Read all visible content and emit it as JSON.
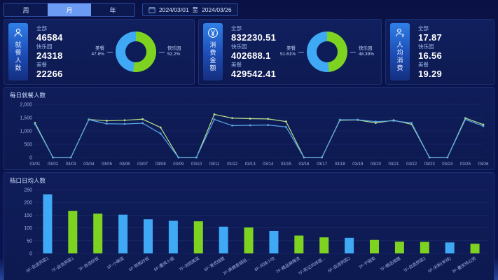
{
  "theme": {
    "bg": "#0a1245",
    "panel": "#0e1c58",
    "accent_blue": "#3fa9f5",
    "accent_green": "#7ed321",
    "line_green": "#b9e08c",
    "line_blue": "#5aa7e8",
    "grid": "#1c3070",
    "tick_text": "#9fb4e6"
  },
  "header": {
    "tabs": [
      {
        "label": "周",
        "active": false
      },
      {
        "label": "月",
        "active": true
      },
      {
        "label": "年",
        "active": false
      }
    ],
    "date_range": {
      "start": "2024/03/01",
      "separator": "至",
      "end": "2024/03/26"
    }
  },
  "kpi_cards": [
    {
      "title": "就餐人数",
      "icon": "person-icon",
      "metrics": [
        {
          "label": "全部",
          "value": "46584"
        },
        {
          "label": "快乐园",
          "value": "24318"
        },
        {
          "label": "美餐",
          "value": "22266"
        }
      ],
      "donut": {
        "left_label": "美餐",
        "left_pct": "47.8%",
        "left_value": 47.8,
        "right_label": "快乐园",
        "right_pct": "52.2%",
        "right_value": 52.2
      }
    },
    {
      "title": "消费金额",
      "icon": "yuan-icon",
      "metrics": [
        {
          "label": "全部",
          "value": "832230.51"
        },
        {
          "label": "快乐园",
          "value": "402688.1"
        },
        {
          "label": "美餐",
          "value": "429542.41"
        }
      ],
      "donut": {
        "left_label": "美餐",
        "left_pct": "51.61%",
        "left_value": 51.61,
        "right_label": "快乐园",
        "right_pct": "48.39%",
        "right_value": 48.39
      }
    },
    {
      "title": "人均消费",
      "icon": "person-yuan-icon",
      "metrics": [
        {
          "label": "全部",
          "value": "17.87"
        },
        {
          "label": "快乐园",
          "value": "16.56"
        },
        {
          "label": "美餐",
          "value": "19.29"
        }
      ]
    }
  ],
  "chart_data": [
    {
      "type": "line",
      "title": "每日就餐人数",
      "x": [
        "03/01",
        "03/02",
        "03/03",
        "03/04",
        "03/05",
        "03/06",
        "03/07",
        "03/08",
        "03/09",
        "03/10",
        "03/11",
        "03/12",
        "03/13",
        "03/14",
        "03/15",
        "03/16",
        "03/17",
        "03/18",
        "03/19",
        "03/20",
        "03/21",
        "03/22",
        "03/23",
        "03/24",
        "03/25",
        "03/26"
      ],
      "series": [
        {
          "name": "快乐园",
          "color": "#b9e08c",
          "values": [
            1300,
            0,
            0,
            1430,
            1380,
            1400,
            1440,
            1130,
            0,
            0,
            1620,
            1480,
            1460,
            1450,
            1350,
            0,
            0,
            1400,
            1410,
            1300,
            1400,
            1250,
            0,
            0,
            1480,
            1240
          ]
        },
        {
          "name": "美餐",
          "color": "#5aa7e8",
          "values": [
            1250,
            0,
            0,
            1420,
            1270,
            1260,
            1290,
            900,
            0,
            0,
            1430,
            1200,
            1210,
            1220,
            1150,
            0,
            0,
            1420,
            1420,
            1350,
            1380,
            1300,
            0,
            0,
            1430,
            1180
          ]
        }
      ],
      "ylim": [
        0,
        2000
      ],
      "yticks": [
        0,
        500,
        1000,
        1500,
        2000
      ],
      "ytick_labels": [
        "0",
        "500",
        "1,000",
        "1,500",
        "2,000"
      ],
      "grid": true,
      "legend": "none"
    },
    {
      "type": "bar",
      "title": "档口日均人数",
      "categories": [
        "6F-自选例菜1",
        "7F-自选例菜1",
        "7F-自选份饭",
        "6F-小碗菜",
        "6F-铁板炒饭",
        "6F-重庆小面",
        "7F-浏阳蒸菜",
        "6F-港式烧腊",
        "7F-麻辣香锅组...",
        "6F-风味小吃",
        "7F-精品麻辣烫",
        "7F-陈记风味面...",
        "6F-自选例菜2",
        "7F-干锅类",
        "7F-精品烧腊",
        "7F-自选例菜2",
        "6F-米粉(米线)",
        "7F-重庆鸡公煲"
      ],
      "values": [
        232,
        167,
        156,
        152,
        134,
        128,
        126,
        105,
        102,
        88,
        70,
        63,
        61,
        53,
        46,
        45,
        43,
        38
      ],
      "colors": [
        "#3fa9f5",
        "#7ed321",
        "#7ed321",
        "#3fa9f5",
        "#3fa9f5",
        "#3fa9f5",
        "#7ed321",
        "#3fa9f5",
        "#7ed321",
        "#3fa9f5",
        "#7ed321",
        "#7ed321",
        "#3fa9f5",
        "#7ed321",
        "#7ed321",
        "#7ed321",
        "#3fa9f5",
        "#7ed321"
      ],
      "ylim": [
        0,
        250
      ],
      "yticks": [
        0,
        50,
        100,
        150,
        200,
        250
      ],
      "ytick_labels": [
        "0",
        "50",
        "100",
        "150",
        "200",
        "250"
      ],
      "grid": true,
      "legend": "none"
    }
  ]
}
